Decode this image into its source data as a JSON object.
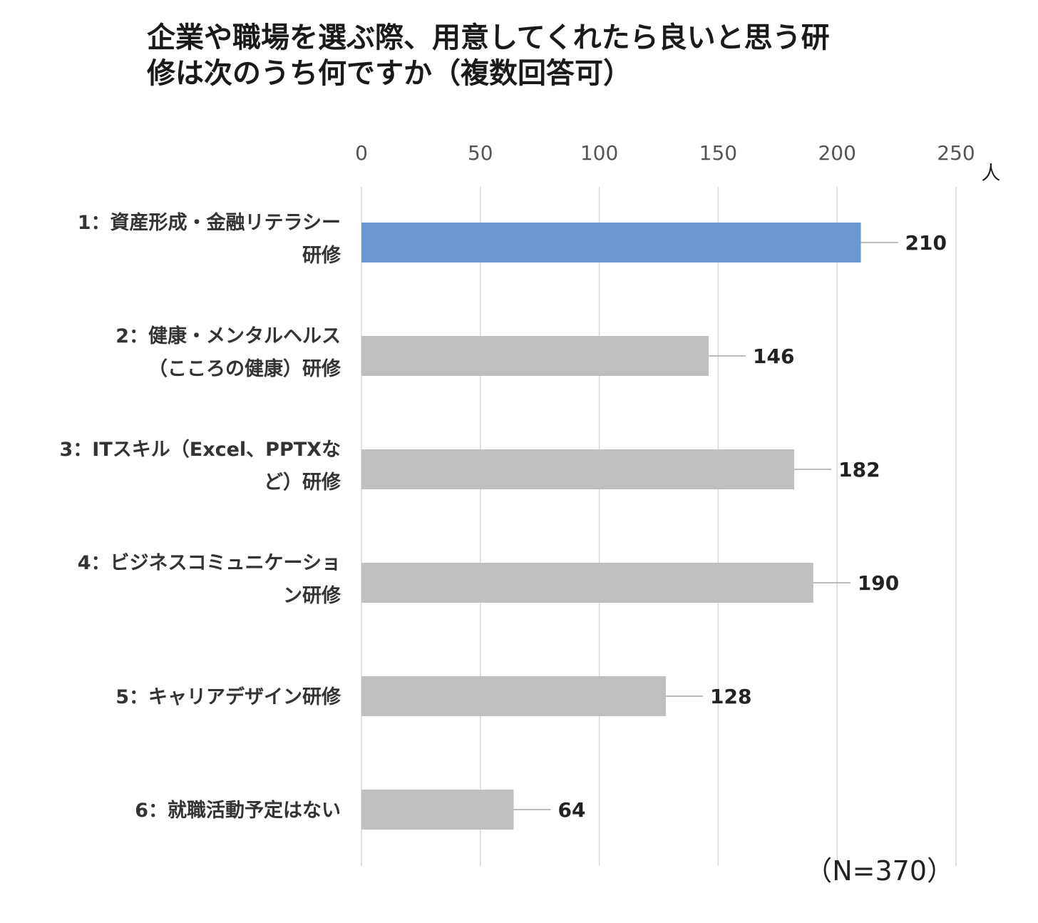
{
  "title": {
    "line1": "企業や職場を選ぶ際、用意してくれたら良いと思う研",
    "line2": "修は次のうち何ですか（複数回答可）"
  },
  "note": "（N=370）",
  "colors": {
    "highlight": "#6b98cf",
    "bar": "#bfbfbf",
    "grid": "#d9d9d9",
    "leader": "#a6a6a6"
  },
  "chart_data": {
    "type": "bar",
    "orientation": "horizontal",
    "unit_label": "人",
    "xlim": [
      0,
      250
    ],
    "xticks": [
      "0",
      "50",
      "100",
      "150",
      "200",
      "250"
    ],
    "grid": true,
    "highlight_index": 0,
    "categories": [
      [
        "1：資産形成・金融リテラシー",
        "研修"
      ],
      [
        "2：健康・メンタルヘルス",
        "（こころの健康）研修"
      ],
      [
        "3：ITスキル（Excel、PPTXな",
        "ど）研修"
      ],
      [
        "4：ビジネスコミュニケーショ",
        "ン研修"
      ],
      [
        "5：キャリアデザイン研修"
      ],
      [
        "6：就職活動予定はない"
      ]
    ],
    "values": [
      210,
      146,
      182,
      190,
      128,
      64
    ]
  }
}
